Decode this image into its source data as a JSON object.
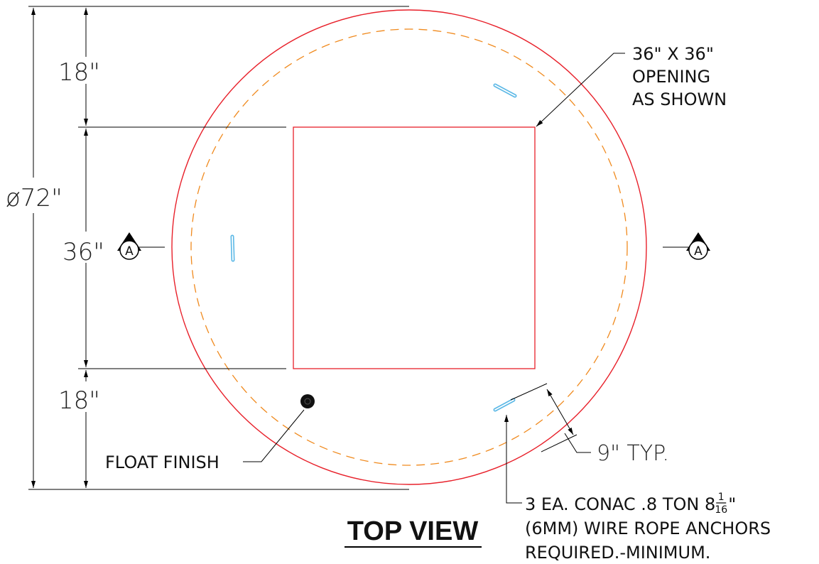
{
  "dimensions": {
    "diameter": "ø72\"",
    "top": "18\"",
    "middle": "36\"",
    "bottom": "18\"",
    "offset": "9\" TYP."
  },
  "opening_note": {
    "lines": [
      "36\" X 36\"",
      "OPENING",
      "AS SHOWN"
    ]
  },
  "float_finish": "FLOAT FINISH",
  "anchor_note": {
    "line1_prefix": "3 EA. CONAC .8 TON 8",
    "line1_frac_num": "1",
    "line1_frac_den": "16",
    "line1_suffix": "\"",
    "line2": "(6MM) WIRE ROPE ANCHORS",
    "line3": "REQUIRED.-MINIMUM."
  },
  "section_marker": "A",
  "title": "TOP VIEW",
  "colors": {
    "outline": "#e8202a",
    "dashed_circle": "#f08a1e",
    "anchor": "#5bb8e6",
    "linework": "#000000"
  }
}
